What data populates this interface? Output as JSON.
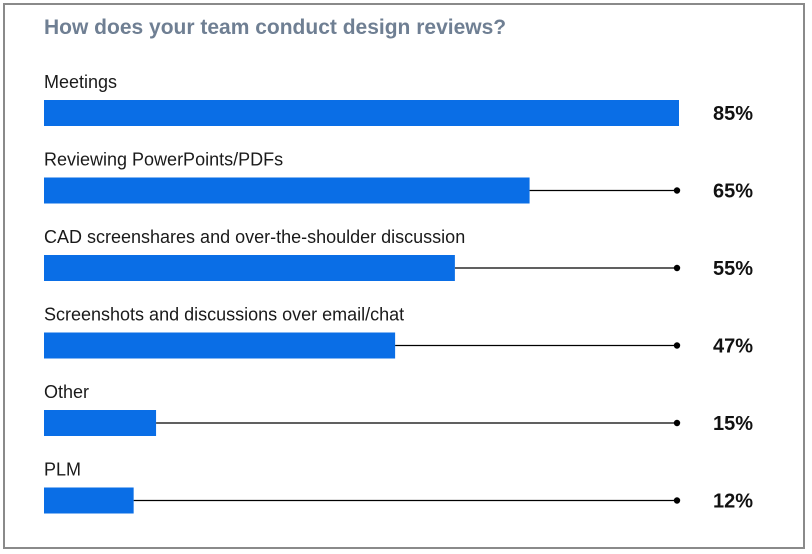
{
  "chart_data": {
    "type": "bar",
    "orientation": "horizontal",
    "title": "How does your team conduct design reviews?",
    "categories": [
      "Meetings",
      "Reviewing PowerPoints/PDFs",
      "CAD screenshares and over-the-shoulder discussion",
      "Screenshots and discussions over email/chat",
      "Other",
      "PLM"
    ],
    "values": [
      85,
      65,
      55,
      47,
      15,
      12
    ],
    "value_labels": [
      "85%",
      "65%",
      "55%",
      "47%",
      "15%",
      "12%"
    ],
    "unit": "%",
    "xlim": [
      0,
      85
    ],
    "grid": false,
    "legend": "none",
    "bar_color": "#0a6ee6",
    "leader_line_color": "#000000"
  },
  "colors": {
    "title": "#6f7f93",
    "border": "#8a8a8a"
  }
}
